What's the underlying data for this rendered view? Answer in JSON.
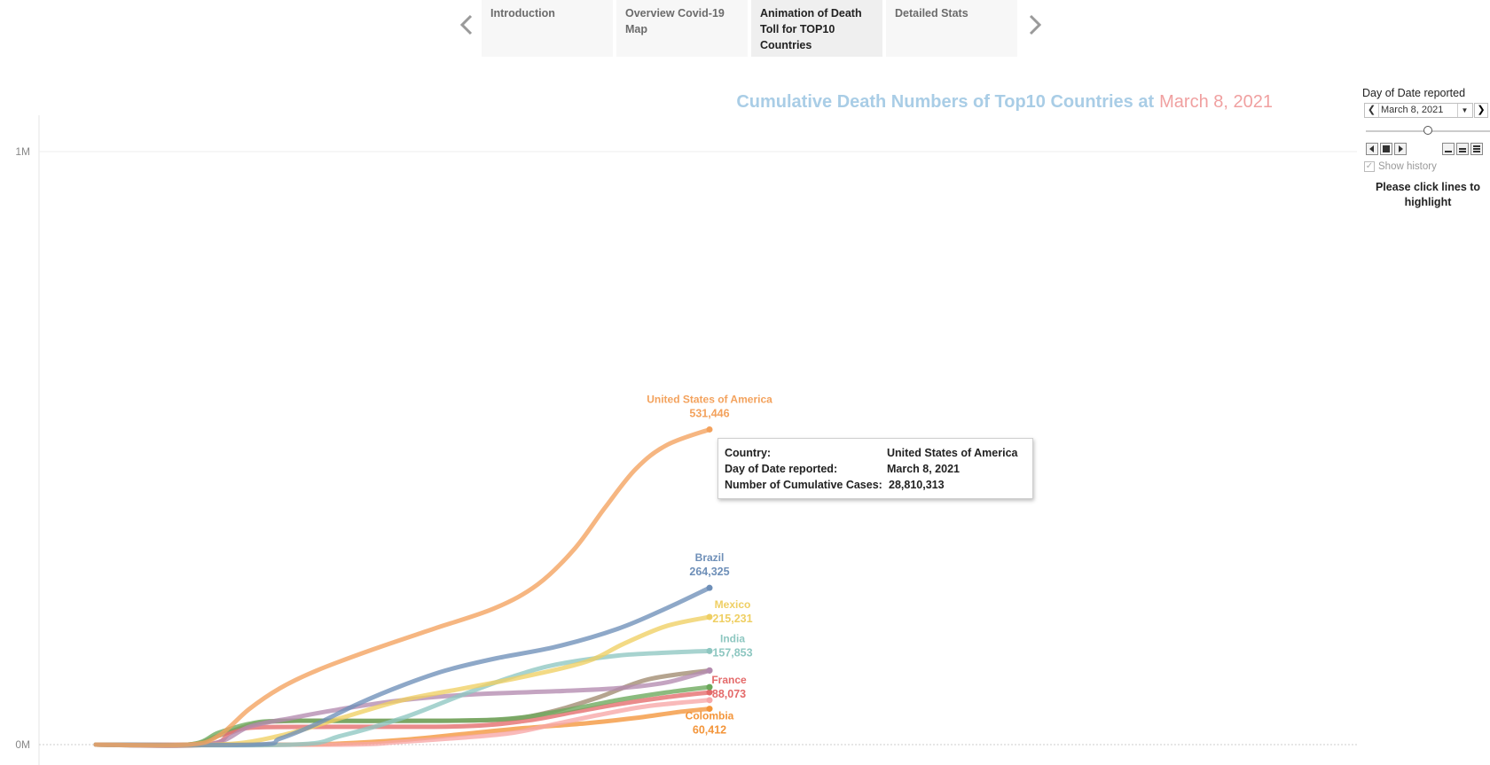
{
  "nav": {
    "prev_icon": "chevron-left-icon",
    "next_icon": "chevron-right-icon",
    "tabs": [
      {
        "label": "Introduction"
      },
      {
        "label": "Overview Covid-19 Map"
      },
      {
        "label": "Animation of Death Toll for TOP10 Countries"
      },
      {
        "label": "Detailed Stats"
      }
    ],
    "active_tab": 2
  },
  "title": {
    "prefix": "Cumulative Death Numbers of Top10 Countries at",
    "date": "March 8, 2021"
  },
  "controls": {
    "label": "Day of Date reported",
    "date_value": "March 8, 2021",
    "slider_position": 0.47,
    "show_history_label": "Show history",
    "show_history_checked": true,
    "hint": "Please click lines to highlight"
  },
  "tooltip": {
    "rows": [
      {
        "key": "Country:",
        "value": "United States of America"
      },
      {
        "key": "Day of Date reported:",
        "value": "March 8, 2021"
      },
      {
        "key": "Number of Cumulative Cases:",
        "value": "28,810,313"
      }
    ]
  },
  "colors": {
    "title_prefix": "#a9cde6",
    "title_date": "#f0a0a0"
  },
  "chart_data": {
    "type": "line",
    "x_label": "",
    "y_label": "",
    "x_range": [
      "2020-01-03",
      "2021-03-08"
    ],
    "ylim": [
      0,
      1000000
    ],
    "y_ticks": [
      {
        "value": 0,
        "label": "0M"
      },
      {
        "value": 1000000,
        "label": "1M"
      }
    ],
    "grid": true,
    "series": [
      {
        "name": "United States of America",
        "color": "#f3a25d",
        "end_label": "531,446",
        "labeled": true,
        "points": [
          [
            0,
            0
          ],
          [
            0.15,
            0
          ],
          [
            0.2,
            15000
          ],
          [
            0.25,
            60000
          ],
          [
            0.3,
            95000
          ],
          [
            0.36,
            125000
          ],
          [
            0.45,
            160000
          ],
          [
            0.55,
            195000
          ],
          [
            0.65,
            230000
          ],
          [
            0.72,
            270000
          ],
          [
            0.78,
            330000
          ],
          [
            0.83,
            400000
          ],
          [
            0.88,
            465000
          ],
          [
            0.93,
            505000
          ],
          [
            1,
            531446
          ]
        ]
      },
      {
        "name": "Brazil",
        "color": "#6e8fb8",
        "end_label": "264,325",
        "labeled": true,
        "points": [
          [
            0,
            0
          ],
          [
            0.26,
            0
          ],
          [
            0.3,
            10000
          ],
          [
            0.36,
            35000
          ],
          [
            0.43,
            70000
          ],
          [
            0.5,
            100000
          ],
          [
            0.57,
            125000
          ],
          [
            0.65,
            145000
          ],
          [
            0.75,
            165000
          ],
          [
            0.85,
            195000
          ],
          [
            0.93,
            230000
          ],
          [
            1,
            264325
          ]
        ]
      },
      {
        "name": "Mexico",
        "color": "#efcf63",
        "end_label": "215,231",
        "labeled": true,
        "points": [
          [
            0,
            0
          ],
          [
            0.2,
            0
          ],
          [
            0.3,
            15000
          ],
          [
            0.4,
            45000
          ],
          [
            0.5,
            75000
          ],
          [
            0.6,
            95000
          ],
          [
            0.7,
            115000
          ],
          [
            0.8,
            140000
          ],
          [
            0.86,
            170000
          ],
          [
            0.93,
            200000
          ],
          [
            1,
            215231
          ]
        ]
      },
      {
        "name": "India",
        "color": "#8ec7c1",
        "end_label": "157,853",
        "labeled": true,
        "points": [
          [
            0,
            0
          ],
          [
            0.32,
            0
          ],
          [
            0.4,
            15000
          ],
          [
            0.5,
            45000
          ],
          [
            0.6,
            85000
          ],
          [
            0.68,
            115000
          ],
          [
            0.75,
            135000
          ],
          [
            0.85,
            150000
          ],
          [
            0.93,
            155000
          ],
          [
            1,
            157853
          ]
        ]
      },
      {
        "name": "",
        "color": "#b48ab0",
        "end_label": "",
        "labeled": false,
        "points": [
          [
            0,
            0
          ],
          [
            0.18,
            0
          ],
          [
            0.25,
            30000
          ],
          [
            0.32,
            45000
          ],
          [
            0.4,
            60000
          ],
          [
            0.5,
            75000
          ],
          [
            0.62,
            85000
          ],
          [
            0.75,
            90000
          ],
          [
            0.85,
            95000
          ],
          [
            0.93,
            105000
          ],
          [
            1,
            125000
          ]
        ]
      },
      {
        "name": "",
        "color": "#6aa85a",
        "end_label": "",
        "labeled": false,
        "points": [
          [
            0,
            0
          ],
          [
            0.15,
            0
          ],
          [
            0.2,
            20000
          ],
          [
            0.25,
            35000
          ],
          [
            0.3,
            40000
          ],
          [
            0.45,
            40000
          ],
          [
            0.65,
            42000
          ],
          [
            0.75,
            55000
          ],
          [
            0.85,
            75000
          ],
          [
            0.93,
            88000
          ],
          [
            1,
            97000
          ]
        ]
      },
      {
        "name": "France",
        "color": "#e46a6a",
        "end_label": "88,073",
        "labeled": true,
        "points": [
          [
            0,
            0
          ],
          [
            0.18,
            0
          ],
          [
            0.22,
            20000
          ],
          [
            0.26,
            29000
          ],
          [
            0.4,
            30000
          ],
          [
            0.6,
            31000
          ],
          [
            0.7,
            40000
          ],
          [
            0.78,
            55000
          ],
          [
            0.85,
            68000
          ],
          [
            0.93,
            80000
          ],
          [
            1,
            88073
          ]
        ]
      },
      {
        "name": "",
        "color": "#f7a7a7",
        "end_label": "",
        "labeled": false,
        "points": [
          [
            0,
            0
          ],
          [
            0.4,
            0
          ],
          [
            0.5,
            5000
          ],
          [
            0.6,
            12000
          ],
          [
            0.68,
            20000
          ],
          [
            0.75,
            35000
          ],
          [
            0.82,
            50000
          ],
          [
            0.9,
            65000
          ],
          [
            1,
            75000
          ]
        ]
      },
      {
        "name": "",
        "color": "#a08a70",
        "end_label": "",
        "labeled": false,
        "points": [
          [
            0,
            0
          ],
          [
            0.15,
            0
          ],
          [
            0.2,
            15000
          ],
          [
            0.26,
            35000
          ],
          [
            0.32,
            40000
          ],
          [
            0.5,
            40000
          ],
          [
            0.66,
            42000
          ],
          [
            0.74,
            55000
          ],
          [
            0.82,
            80000
          ],
          [
            0.9,
            110000
          ],
          [
            1,
            125000
          ]
        ]
      },
      {
        "name": "Colombia",
        "color": "#f3953a",
        "end_label": "60,412",
        "labeled": true,
        "points": [
          [
            0,
            0
          ],
          [
            0.32,
            0
          ],
          [
            0.4,
            2000
          ],
          [
            0.5,
            8000
          ],
          [
            0.6,
            18000
          ],
          [
            0.7,
            28000
          ],
          [
            0.8,
            36000
          ],
          [
            0.88,
            45000
          ],
          [
            0.95,
            55000
          ],
          [
            1,
            60412
          ]
        ]
      }
    ]
  }
}
